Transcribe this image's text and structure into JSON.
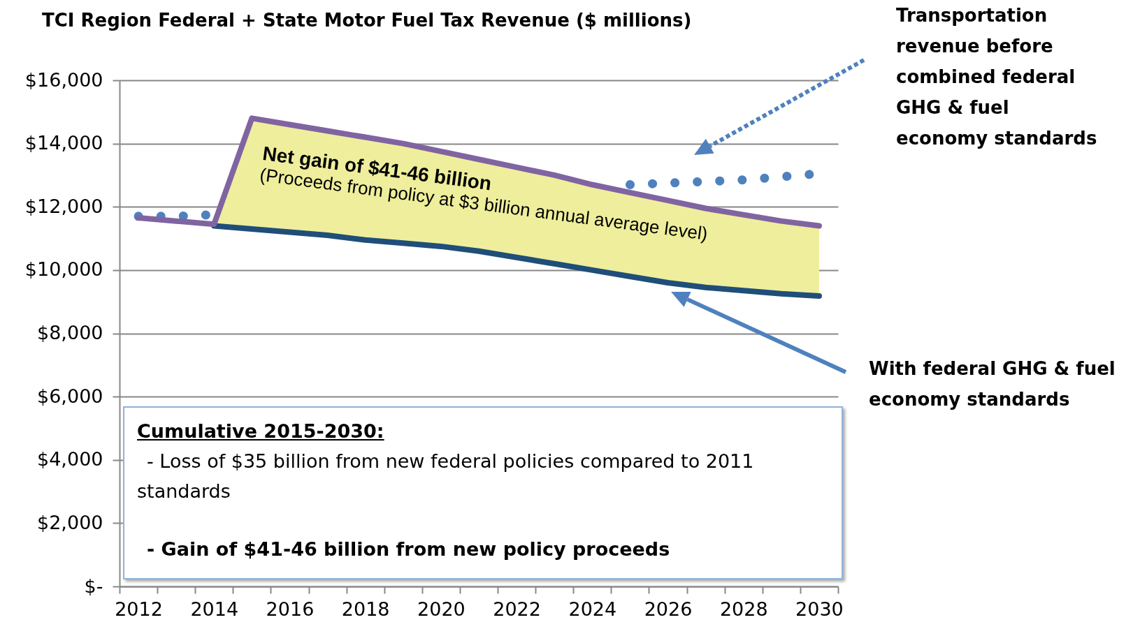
{
  "chart_data": {
    "type": "line",
    "title": "TCI Region Federal + State Motor Fuel Tax Revenue ($ millions)",
    "categories": [
      "2012",
      null,
      "2014",
      null,
      "2016",
      null,
      "2018",
      null,
      "2020",
      null,
      "2022",
      null,
      "2024",
      null,
      "2026",
      null,
      "2028",
      null,
      "2030"
    ],
    "series": [
      {
        "name": "Transportation revenue before combined federal GHG & fuel economy standards",
        "color": "#4f81bd",
        "line_style": "dotted",
        "values": [
          11700,
          11700,
          11750,
          null,
          null,
          null,
          null,
          null,
          null,
          null,
          null,
          null,
          null,
          12700,
          12750,
          12800,
          12850,
          12950,
          13050
        ]
      },
      {
        "type": "area",
        "color": "#eeee9c",
        "values": [
          null,
          null,
          11450,
          14800,
          14600,
          14400,
          14200,
          14000,
          13750,
          13500,
          13250,
          13000,
          12700,
          12450,
          12200,
          11950,
          11750,
          11550,
          11400
        ]
      },
      {
        "name": "With federal GHG & fuel economy standards",
        "color": "#1f4e79",
        "line_style": "solid",
        "values": [
          null,
          null,
          11400,
          11300,
          11200,
          11100,
          10950,
          10850,
          10750,
          10600,
          10400,
          10200,
          10000,
          9800,
          9600,
          9450,
          9350,
          9250,
          9180
        ]
      },
      {
        "color": "#8064a2",
        "line_style": "solid",
        "values": [
          11650,
          11550,
          11450,
          14800,
          14600,
          14400,
          14200,
          14000,
          13750,
          13500,
          13250,
          13000,
          12700,
          12450,
          12200,
          11950,
          11750,
          11550,
          11400
        ]
      }
    ],
    "ylim": [
      0,
      16000
    ],
    "yticks": [
      {
        "value": 0,
        "label": "$-"
      },
      {
        "value": 2000,
        "label": "$2,000"
      },
      {
        "value": 4000,
        "label": "$4,000"
      },
      {
        "value": 6000,
        "label": "$6,000"
      },
      {
        "value": 8000,
        "label": "$8,000"
      },
      {
        "value": 10000,
        "label": "$10,000"
      },
      {
        "value": 12000,
        "label": "$12,000"
      },
      {
        "value": 14000,
        "label": "$14,000"
      },
      {
        "value": 16000,
        "label": "$16,000"
      }
    ],
    "grid": "y",
    "annotations": [
      "Net gain of $41-46 billion",
      "(Proceeds from policy at $3 billion annual average level)",
      "Cumulative  2015-2030:",
      "- Loss of $35 billion from new federal policies compared to 2011 standards",
      "- Gain of $41-46 billion from new policy proceeds"
    ]
  }
}
